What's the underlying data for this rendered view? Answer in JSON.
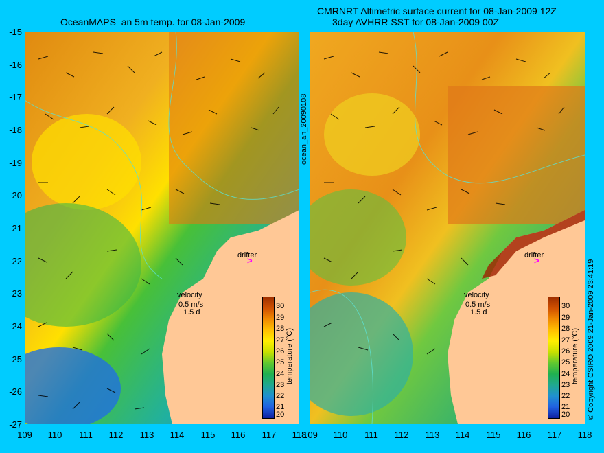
{
  "left_panel": {
    "title": "OceanMAPS_an 5m temp. for 08-Jan-2009",
    "drifter_label": "drifter",
    "velocity_label": "velocity",
    "velocity_scale": "0.5 m/s",
    "velocity_days": "1.5 d",
    "colorbar_label": "temperature (°C)"
  },
  "right_panel": {
    "title_line1": "CMRNRT Altimetric surface current for 08-Jan-2009 12Z",
    "title_line2": "3day AVHRR SST for 08-Jan-2009 00Z",
    "drifter_label": "drifter",
    "velocity_label": "velocity",
    "velocity_scale": "0.5 m/s",
    "velocity_days": "1.5 d",
    "colorbar_label": "temperature (°C)"
  },
  "side_label": "ocean_an_20090108",
  "copyright": "© Copyright CSIRO 2009   21-Jan-2009 23:41:19",
  "axes": {
    "lat_ticks": [
      "-15",
      "-16",
      "-17",
      "-18",
      "-19",
      "-20",
      "-21",
      "-22",
      "-23",
      "-24",
      "-25",
      "-26",
      "-27"
    ],
    "lon_ticks": [
      "109",
      "110",
      "111",
      "112",
      "113",
      "114",
      "115",
      "116",
      "117",
      "118"
    ]
  },
  "colorbar_ticks": [
    "30",
    "29",
    "28",
    "27",
    "26",
    "25",
    "24",
    "23",
    "22",
    "21",
    "20"
  ],
  "colors": {
    "background": "#00ccff",
    "land": "#ffc896",
    "drifter": "#ff00ff"
  }
}
